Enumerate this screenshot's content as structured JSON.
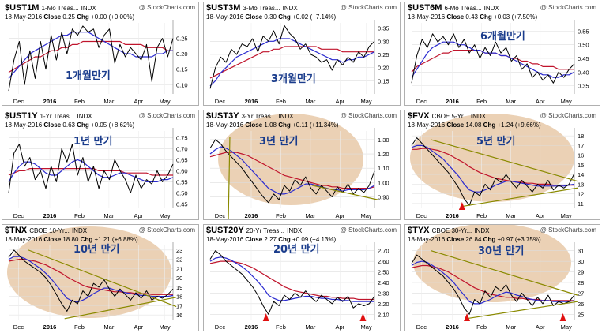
{
  "colors": {
    "price": "#000000",
    "ma_fast": "#2b2bd0",
    "ma_slow": "#c0142c",
    "highlight": "#e8c9a8",
    "trend": "#8a8a00",
    "arrow": "#e01010",
    "annotation": "#1a3c8c"
  },
  "chart_data": [
    {
      "type": "line",
      "symbol": "$UST1M",
      "desc": "1-Mo Treas...",
      "exch": "INDX",
      "date": "18-May-2016",
      "close": "0.25",
      "chg": "+0.00 (+0.00%)",
      "source": "@ StockCharts.com",
      "annotation": "1개월만기",
      "x_labels": [
        "Dec",
        "2016",
        "Feb",
        "Mar",
        "Apr",
        "May"
      ],
      "y_ticks": [
        0.1,
        0.15,
        0.2,
        0.25
      ],
      "ylim": [
        0.07,
        0.3
      ],
      "price": [
        0.08,
        0.18,
        0.24,
        0.1,
        0.21,
        0.12,
        0.24,
        0.15,
        0.26,
        0.18,
        0.27,
        0.2,
        0.28,
        0.26,
        0.29,
        0.27,
        0.28,
        0.22,
        0.26,
        0.28,
        0.17,
        0.23,
        0.19,
        0.22,
        0.2,
        0.18,
        0.23,
        0.11,
        0.22,
        0.25,
        0.19,
        0.25
      ],
      "ma_fast": [
        0.12,
        0.14,
        0.16,
        0.18,
        0.2,
        0.21,
        0.22,
        0.23,
        0.24,
        0.25,
        0.26,
        0.26,
        0.27,
        0.27,
        0.27,
        0.27,
        0.26,
        0.25,
        0.24,
        0.23,
        0.22,
        0.21,
        0.2,
        0.2,
        0.19,
        0.19,
        0.19,
        0.19,
        0.2,
        0.2,
        0.21,
        0.21
      ],
      "ma_slow": [
        0.14,
        0.15,
        0.16,
        0.17,
        0.18,
        0.19,
        0.19,
        0.2,
        0.21,
        0.21,
        0.22,
        0.22,
        0.23,
        0.23,
        0.24,
        0.24,
        0.24,
        0.24,
        0.24,
        0.24,
        0.24,
        0.24,
        0.23,
        0.23,
        0.23,
        0.23,
        0.22,
        0.22,
        0.22,
        0.22,
        0.21,
        0.21
      ]
    },
    {
      "type": "line",
      "symbol": "$UST3M",
      "desc": "3-Mo Treas...",
      "exch": "INDX",
      "date": "18-May-2016",
      "close": "0.30",
      "chg": "+0.02 (+7.14%)",
      "source": "@ StockCharts.com",
      "annotation": "3개월만기",
      "x_labels": [
        "Dec",
        "2016",
        "Feb",
        "Mar",
        "Apr",
        "May"
      ],
      "y_ticks": [
        0.15,
        0.2,
        0.25,
        0.3,
        0.35
      ],
      "ylim": [
        0.1,
        0.37
      ],
      "price": [
        0.12,
        0.2,
        0.24,
        0.22,
        0.27,
        0.25,
        0.29,
        0.28,
        0.31,
        0.26,
        0.32,
        0.3,
        0.34,
        0.29,
        0.36,
        0.33,
        0.31,
        0.27,
        0.29,
        0.25,
        0.24,
        0.22,
        0.23,
        0.19,
        0.23,
        0.21,
        0.24,
        0.22,
        0.26,
        0.24,
        0.28,
        0.3
      ],
      "ma_fast": [
        0.13,
        0.15,
        0.18,
        0.2,
        0.22,
        0.24,
        0.25,
        0.26,
        0.27,
        0.28,
        0.29,
        0.3,
        0.3,
        0.31,
        0.31,
        0.31,
        0.3,
        0.29,
        0.28,
        0.27,
        0.26,
        0.25,
        0.24,
        0.23,
        0.23,
        0.22,
        0.23,
        0.23,
        0.24,
        0.24,
        0.25,
        0.26
      ],
      "ma_slow": [
        0.16,
        0.17,
        0.18,
        0.19,
        0.2,
        0.21,
        0.22,
        0.23,
        0.24,
        0.25,
        0.26,
        0.26,
        0.27,
        0.27,
        0.28,
        0.28,
        0.28,
        0.28,
        0.28,
        0.28,
        0.28,
        0.27,
        0.27,
        0.27,
        0.27,
        0.26,
        0.26,
        0.26,
        0.26,
        0.26,
        0.26,
        0.26
      ]
    },
    {
      "type": "line",
      "symbol": "$UST6M",
      "desc": "6-Mo Treas...",
      "exch": "INDX",
      "date": "18-May-2016",
      "close": "0.43",
      "chg": "+0.03 (+7.50%)",
      "source": "@ StockCharts.com",
      "annotation": "6개월만기",
      "x_labels": [
        "Dec",
        "2016",
        "Feb",
        "Mar",
        "Apr",
        "May"
      ],
      "y_ticks": [
        0.35,
        0.4,
        0.45,
        0.5,
        0.55
      ],
      "ylim": [
        0.32,
        0.58
      ],
      "price": [
        0.36,
        0.46,
        0.52,
        0.49,
        0.54,
        0.51,
        0.53,
        0.5,
        0.54,
        0.49,
        0.52,
        0.47,
        0.5,
        0.45,
        0.49,
        0.46,
        0.51,
        0.47,
        0.49,
        0.44,
        0.46,
        0.41,
        0.43,
        0.38,
        0.4,
        0.37,
        0.39,
        0.36,
        0.4,
        0.38,
        0.41,
        0.43
      ],
      "ma_fast": [
        0.38,
        0.41,
        0.44,
        0.47,
        0.49,
        0.5,
        0.51,
        0.51,
        0.51,
        0.5,
        0.5,
        0.49,
        0.48,
        0.48,
        0.47,
        0.47,
        0.47,
        0.46,
        0.46,
        0.45,
        0.44,
        0.43,
        0.42,
        0.41,
        0.4,
        0.39,
        0.39,
        0.38,
        0.38,
        0.39,
        0.39,
        0.4
      ],
      "ma_slow": [
        0.4,
        0.42,
        0.43,
        0.44,
        0.45,
        0.46,
        0.47,
        0.47,
        0.48,
        0.48,
        0.48,
        0.48,
        0.48,
        0.48,
        0.47,
        0.47,
        0.47,
        0.46,
        0.46,
        0.45,
        0.45,
        0.44,
        0.44,
        0.43,
        0.43,
        0.42,
        0.42,
        0.42,
        0.41,
        0.41,
        0.41,
        0.41
      ]
    },
    {
      "type": "line",
      "symbol": "$UST1Y",
      "desc": "1-Yr Treas...",
      "exch": "INDX",
      "date": "18-May-2016",
      "close": "0.63",
      "chg": "+0.05 (+8.62%)",
      "source": "@ StockCharts.com",
      "annotation": "1년 만기",
      "x_labels": [
        "Dec",
        "2016",
        "Feb",
        "Mar",
        "Apr",
        "May"
      ],
      "y_ticks": [
        0.45,
        0.5,
        0.55,
        0.6,
        0.65,
        0.7,
        0.75
      ],
      "ylim": [
        0.43,
        0.78
      ],
      "price": [
        0.5,
        0.68,
        0.72,
        0.62,
        0.66,
        0.56,
        0.6,
        0.52,
        0.62,
        0.55,
        0.7,
        0.64,
        0.72,
        0.58,
        0.66,
        0.55,
        0.62,
        0.52,
        0.6,
        0.56,
        0.65,
        0.6,
        0.56,
        0.5,
        0.58,
        0.52,
        0.56,
        0.54,
        0.6,
        0.55,
        0.58,
        0.63
      ],
      "ma_fast": [
        0.55,
        0.59,
        0.62,
        0.64,
        0.64,
        0.63,
        0.61,
        0.59,
        0.58,
        0.58,
        0.6,
        0.62,
        0.64,
        0.65,
        0.64,
        0.62,
        0.6,
        0.58,
        0.57,
        0.57,
        0.58,
        0.59,
        0.59,
        0.58,
        0.57,
        0.56,
        0.55,
        0.55,
        0.55,
        0.56,
        0.56,
        0.57
      ],
      "ma_slow": [
        0.58,
        0.59,
        0.6,
        0.6,
        0.61,
        0.61,
        0.61,
        0.61,
        0.61,
        0.61,
        0.61,
        0.61,
        0.61,
        0.61,
        0.61,
        0.61,
        0.61,
        0.6,
        0.6,
        0.6,
        0.6,
        0.6,
        0.59,
        0.59,
        0.59,
        0.59,
        0.59,
        0.58,
        0.58,
        0.58,
        0.58,
        0.58
      ]
    },
    {
      "type": "line",
      "symbol": "$UST3Y",
      "desc": "3-Yr Treas...",
      "exch": "INDX",
      "date": "18-May-2016",
      "close": "1.08",
      "chg": "+0.11 (+11.34%)",
      "source": "@ StockCharts.com",
      "annotation": "3년 만기",
      "x_labels": [
        "Dec",
        "2016",
        "Feb",
        "Mar",
        "Apr",
        "May"
      ],
      "y_ticks": [
        0.9,
        1.0,
        1.1,
        1.2,
        1.3
      ],
      "ylim": [
        0.82,
        1.36
      ],
      "price": [
        1.24,
        1.3,
        1.27,
        1.22,
        1.18,
        1.14,
        1.1,
        1.05,
        1.0,
        0.95,
        0.9,
        0.86,
        0.92,
        0.88,
        0.98,
        0.94,
        1.02,
        0.98,
        1.04,
        0.96,
        0.92,
        0.98,
        0.94,
        0.9,
        0.97,
        0.93,
        0.99,
        0.92,
        0.96,
        0.93,
        0.98,
        1.08
      ],
      "ma_fast": [
        1.2,
        1.23,
        1.25,
        1.24,
        1.22,
        1.19,
        1.16,
        1.12,
        1.08,
        1.04,
        1.0,
        0.96,
        0.94,
        0.92,
        0.92,
        0.93,
        0.95,
        0.97,
        0.99,
        0.99,
        0.98,
        0.97,
        0.96,
        0.95,
        0.95,
        0.94,
        0.95,
        0.95,
        0.95,
        0.95,
        0.96,
        0.98
      ],
      "ma_slow": [
        1.18,
        1.19,
        1.2,
        1.21,
        1.21,
        1.21,
        1.2,
        1.19,
        1.17,
        1.15,
        1.13,
        1.11,
        1.09,
        1.07,
        1.05,
        1.04,
        1.03,
        1.02,
        1.01,
        1.0,
        0.99,
        0.98,
        0.98,
        0.97,
        0.97,
        0.96,
        0.96,
        0.96,
        0.96,
        0.96,
        0.96,
        0.97
      ]
    },
    {
      "type": "line",
      "symbol": "$FVX",
      "desc": "CBOE 5-Yr...",
      "exch": "INDX",
      "date": "18-May-2016",
      "close": "14.08",
      "chg": "+1.24 (+9.66%)",
      "source": "@ StockCharts.com",
      "annotation": "5년 만기",
      "x_labels": [
        "Dec",
        "2016",
        "Feb",
        "Mar",
        "Apr",
        "May"
      ],
      "y_ticks": [
        11,
        12,
        13,
        14,
        15,
        16,
        17,
        18
      ],
      "ylim": [
        10.5,
        18.5
      ],
      "price": [
        17.0,
        17.8,
        17.2,
        16.6,
        16.0,
        15.4,
        14.8,
        14.2,
        13.4,
        12.6,
        11.5,
        10.8,
        12.2,
        11.8,
        13.0,
        12.4,
        13.6,
        13.2,
        14.0,
        13.2,
        12.6,
        13.4,
        12.8,
        12.2,
        13.0,
        12.6,
        13.4,
        12.4,
        12.9,
        12.6,
        13.0,
        14.1
      ],
      "ma_fast": [
        16.8,
        17.0,
        17.0,
        16.8,
        16.4,
        16.0,
        15.6,
        15.0,
        14.4,
        13.8,
        13.0,
        12.4,
        12.2,
        12.2,
        12.4,
        12.6,
        12.9,
        13.1,
        13.3,
        13.3,
        13.2,
        13.1,
        13.0,
        12.9,
        12.8,
        12.8,
        12.8,
        12.8,
        12.8,
        12.8,
        12.9,
        13.0
      ],
      "ma_slow": [
        16.6,
        16.6,
        16.7,
        16.7,
        16.6,
        16.5,
        16.3,
        16.1,
        15.8,
        15.5,
        15.2,
        14.8,
        14.5,
        14.2,
        14.0,
        13.8,
        13.6,
        13.5,
        13.4,
        13.3,
        13.2,
        13.2,
        13.1,
        13.1,
        13.0,
        13.0,
        13.0,
        12.9,
        12.9,
        12.9,
        12.9,
        12.9
      ]
    },
    {
      "type": "line",
      "symbol": "$TNX",
      "desc": "CBOE 10-Yr...",
      "exch": "INDX",
      "date": "18-May-2016",
      "close": "18.80",
      "chg": "+1.21 (+6.88%)",
      "source": "@ StockCharts.com",
      "annotation": "10년 만기",
      "x_labels": [
        "Dec",
        "2016",
        "Feb",
        "Mar",
        "Apr",
        "May"
      ],
      "y_ticks": [
        16,
        17,
        18,
        19,
        20,
        21,
        22,
        23
      ],
      "ylim": [
        15.5,
        23.5
      ],
      "price": [
        22.2,
        23.0,
        22.4,
        21.8,
        21.4,
        21.0,
        20.6,
        20.0,
        19.2,
        18.2,
        17.2,
        16.4,
        17.6,
        17.2,
        18.6,
        18.0,
        19.4,
        19.0,
        19.8,
        18.8,
        18.0,
        18.8,
        18.2,
        17.6,
        18.4,
        17.8,
        18.6,
        17.6,
        18.0,
        17.8,
        18.2,
        18.8
      ],
      "ma_fast": [
        22.0,
        22.3,
        22.3,
        22.1,
        21.8,
        21.4,
        21.0,
        20.5,
        19.9,
        19.2,
        18.5,
        17.8,
        17.5,
        17.4,
        17.6,
        17.9,
        18.3,
        18.6,
        18.9,
        18.9,
        18.7,
        18.6,
        18.4,
        18.3,
        18.2,
        18.1,
        18.1,
        18.0,
        18.0,
        18.0,
        18.0,
        18.1
      ],
      "ma_slow": [
        21.8,
        21.9,
        22.0,
        22.0,
        21.9,
        21.8,
        21.6,
        21.4,
        21.1,
        20.8,
        20.5,
        20.1,
        19.8,
        19.5,
        19.2,
        19.0,
        18.9,
        18.8,
        18.7,
        18.6,
        18.5,
        18.5,
        18.4,
        18.4,
        18.3,
        18.3,
        18.3,
        18.2,
        18.2,
        18.2,
        18.2,
        18.2
      ]
    },
    {
      "type": "line",
      "symbol": "$UST20Y",
      "desc": "20-Yr Treas...",
      "exch": "INDX",
      "date": "18-May-2016",
      "close": "2.27",
      "chg": "+0.09 (+4.13%)",
      "source": "@ StockCharts.com",
      "annotation": "20년 만기",
      "x_labels": [
        "Dec",
        "2016",
        "Feb",
        "Mar",
        "Apr",
        "May"
      ],
      "y_ticks": [
        2.1,
        2.2,
        2.3,
        2.4,
        2.5,
        2.6,
        2.7
      ],
      "ylim": [
        2.05,
        2.75
      ],
      "price": [
        2.62,
        2.7,
        2.66,
        2.6,
        2.56,
        2.52,
        2.48,
        2.42,
        2.36,
        2.28,
        2.18,
        2.1,
        2.22,
        2.18,
        2.28,
        2.24,
        2.3,
        2.26,
        2.32,
        2.26,
        2.22,
        2.28,
        2.24,
        2.2,
        2.26,
        2.22,
        2.27,
        2.16,
        2.2,
        2.18,
        2.2,
        2.27
      ],
      "ma_fast": [
        2.6,
        2.63,
        2.64,
        2.63,
        2.61,
        2.58,
        2.55,
        2.51,
        2.46,
        2.41,
        2.35,
        2.28,
        2.25,
        2.23,
        2.23,
        2.24,
        2.25,
        2.26,
        2.27,
        2.27,
        2.26,
        2.25,
        2.25,
        2.24,
        2.24,
        2.23,
        2.23,
        2.22,
        2.22,
        2.22,
        2.22,
        2.22
      ],
      "ma_slow": [
        2.58,
        2.59,
        2.6,
        2.6,
        2.6,
        2.59,
        2.58,
        2.56,
        2.54,
        2.51,
        2.48,
        2.45,
        2.42,
        2.39,
        2.36,
        2.34,
        2.32,
        2.31,
        2.3,
        2.29,
        2.28,
        2.27,
        2.27,
        2.26,
        2.26,
        2.25,
        2.25,
        2.25,
        2.24,
        2.24,
        2.24,
        2.24
      ]
    },
    {
      "type": "line",
      "symbol": "$TYX",
      "desc": "CBOE 30-Yr...",
      "exch": "INDX",
      "date": "18-May-2016",
      "close": "26.84",
      "chg": "+0.97 (+3.75%)",
      "source": "@ StockCharts.com",
      "annotation": "30년 만기",
      "x_labels": [
        "Dec",
        "2016",
        "Feb",
        "Mar",
        "Apr",
        "May"
      ],
      "y_ticks": [
        25,
        26,
        27,
        28,
        29,
        30,
        31
      ],
      "ylim": [
        24.5,
        31.5
      ],
      "price": [
        29.8,
        30.6,
        30.2,
        29.8,
        29.4,
        29.0,
        28.6,
        28.0,
        27.4,
        26.6,
        25.6,
        25.0,
        26.4,
        26.0,
        27.2,
        26.6,
        27.6,
        27.2,
        27.8,
        26.8,
        26.2,
        27.0,
        26.4,
        25.8,
        26.6,
        26.0,
        26.8,
        25.8,
        26.2,
        26.0,
        26.2,
        26.8
      ],
      "ma_fast": [
        29.6,
        29.9,
        30.0,
        29.9,
        29.6,
        29.3,
        28.9,
        28.5,
        28.0,
        27.4,
        26.8,
        26.2,
        26.0,
        26.0,
        26.2,
        26.4,
        26.7,
        26.9,
        27.1,
        27.0,
        26.8,
        26.7,
        26.5,
        26.4,
        26.3,
        26.3,
        26.3,
        26.2,
        26.2,
        26.2,
        26.2,
        26.3
      ],
      "ma_slow": [
        29.4,
        29.5,
        29.6,
        29.6,
        29.5,
        29.4,
        29.2,
        29.0,
        28.7,
        28.4,
        28.1,
        27.8,
        27.5,
        27.3,
        27.1,
        26.9,
        26.8,
        26.7,
        26.6,
        26.6,
        26.5,
        26.5,
        26.4,
        26.4,
        26.4,
        26.3,
        26.3,
        26.3,
        26.3,
        26.3,
        26.3,
        26.3
      ]
    }
  ]
}
